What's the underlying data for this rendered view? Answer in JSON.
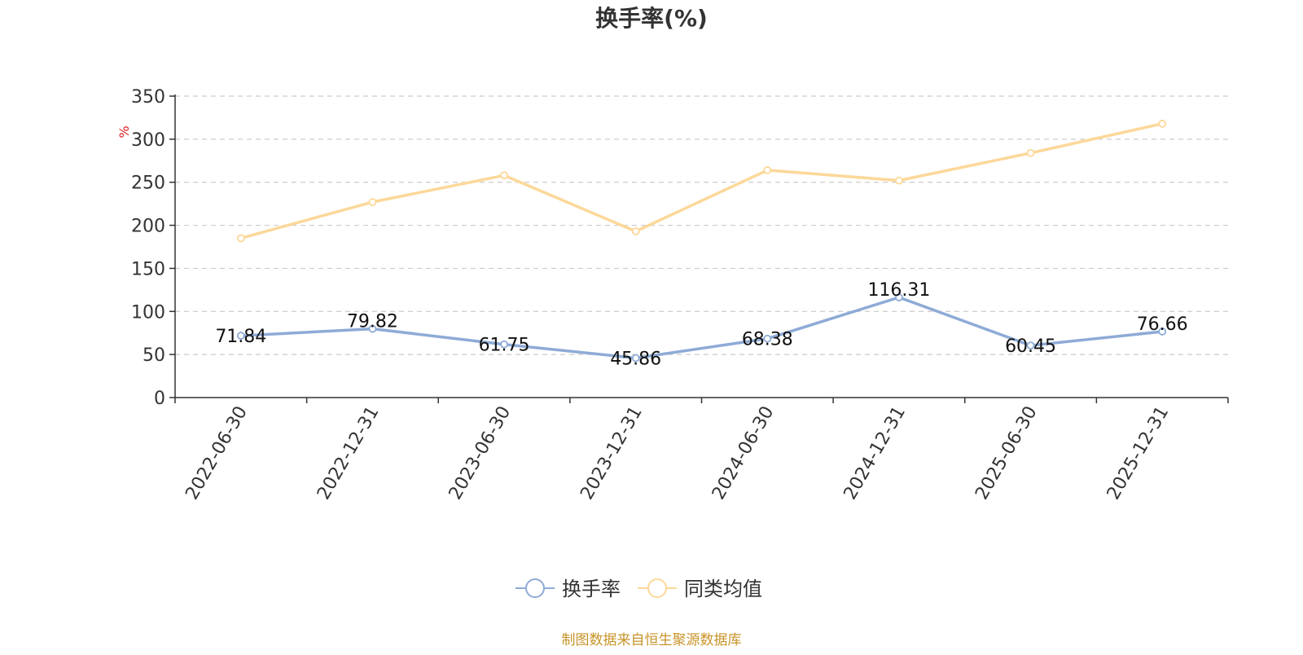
{
  "chart_data": {
    "type": "line",
    "title": "换手率(%)",
    "ylabel": "%",
    "xlabel": "",
    "ylim": [
      0,
      350
    ],
    "yticks": [
      0,
      50,
      100,
      150,
      200,
      250,
      300,
      350
    ],
    "grid": true,
    "legend_position": "bottom-center",
    "categories": [
      "2022-06-30",
      "2022-12-31",
      "2023-06-30",
      "2023-12-31",
      "2024-06-30",
      "2024-12-31",
      "2025-06-30",
      "2025-12-31"
    ],
    "series": [
      {
        "name": "换手率",
        "color": "#8eabd6",
        "values": [
          71.84,
          79.82,
          61.75,
          45.86,
          68.38,
          116.31,
          60.45,
          76.66
        ],
        "labels": [
          "71.84",
          "79.82",
          "61.75",
          "45.86",
          "68.38",
          "116.31",
          "60.45",
          "76.66"
        ]
      },
      {
        "name": "同类均值",
        "color": "#fcd899",
        "values": [
          185,
          227,
          258,
          193,
          264,
          252,
          284,
          318
        ]
      }
    ],
    "source": "制图数据来自恒生聚源数据库"
  }
}
